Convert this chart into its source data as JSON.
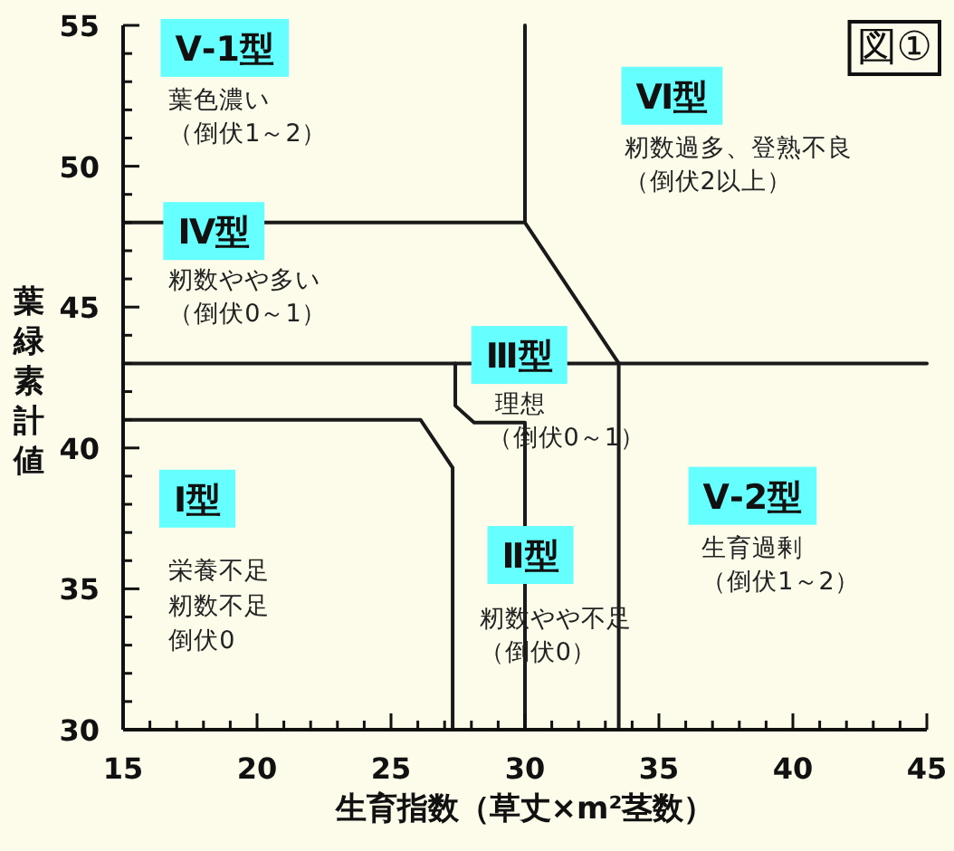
{
  "chart_data": {
    "type": "line",
    "xlabel": "生育指数（草丈×m²茎数）",
    "ylabel": "葉緑素計値",
    "xlim": [
      15,
      45
    ],
    "ylim": [
      30,
      55
    ],
    "xticks": [
      15,
      {
        "value": 16,
        "label": null
      },
      {
        "value": 17,
        "label": null
      },
      {
        "value": 18,
        "label": null
      },
      {
        "value": 19,
        "label": null
      },
      20,
      {
        "value": 21,
        "label": null
      },
      {
        "value": 22,
        "label": null
      },
      {
        "value": 23,
        "label": null
      },
      {
        "value": 24,
        "label": null
      },
      25,
      {
        "value": 26,
        "label": null
      },
      {
        "value": 27,
        "label": null
      },
      {
        "value": 28,
        "label": null
      },
      {
        "value": 29,
        "label": null
      },
      30,
      {
        "value": 31,
        "label": null
      },
      {
        "value": 32,
        "label": null
      },
      {
        "value": 33,
        "label": null
      },
      {
        "value": 34,
        "label": null
      },
      35,
      {
        "value": 36,
        "label": null
      },
      {
        "value": 37,
        "label": null
      },
      {
        "value": 38,
        "label": null
      },
      {
        "value": 39,
        "label": null
      },
      40,
      {
        "value": 41,
        "label": null
      },
      {
        "value": 42,
        "label": null
      },
      {
        "value": 43,
        "label": null
      },
      {
        "value": 44,
        "label": null
      },
      45
    ],
    "yticks": [
      30,
      {
        "value": 31,
        "label": null
      },
      {
        "value": 32,
        "label": null
      },
      {
        "value": 33,
        "label": null
      },
      {
        "value": 34,
        "label": null
      },
      35,
      {
        "value": 36,
        "label": null
      },
      {
        "value": 37,
        "label": null
      },
      {
        "value": 38,
        "label": null
      },
      {
        "value": 39,
        "label": null
      },
      40,
      {
        "value": 41,
        "label": null
      },
      {
        "value": 42,
        "label": null
      },
      {
        "value": 43,
        "label": null
      },
      {
        "value": 44,
        "label": null
      },
      45,
      {
        "value": 46,
        "label": null
      },
      {
        "value": 47,
        "label": null
      },
      {
        "value": 48,
        "label": null
      },
      {
        "value": 49,
        "label": null
      },
      50,
      {
        "value": 51,
        "label": null
      },
      {
        "value": 52,
        "label": null
      },
      {
        "value": 53,
        "label": null
      },
      {
        "value": 54,
        "label": null
      },
      55
    ],
    "series": [
      {
        "color": "#1a1a1a",
        "x": [
          30,
          30
        ],
        "values": [
          55,
          48
        ]
      },
      {
        "color": "#1a1a1a",
        "x": [
          15,
          30,
          33.5,
          45
        ],
        "values": [
          48,
          48,
          43,
          43
        ]
      },
      {
        "color": "#1a1a1a",
        "x": [
          15,
          33.5
        ],
        "values": [
          43,
          43
        ]
      },
      {
        "color": "#1a1a1a",
        "x": [
          33.5,
          33.5
        ],
        "values": [
          43,
          30
        ]
      },
      {
        "color": "#1a1a1a",
        "x": [
          15,
          26.1,
          27.3,
          27.3
        ],
        "values": [
          41,
          41,
          39.3,
          30
        ]
      },
      {
        "color": "#1a1a1a",
        "x": [
          27.4,
          27.4,
          28.1,
          30,
          30
        ],
        "values": [
          43,
          41.5,
          40.9,
          40.9,
          30
        ]
      }
    ],
    "annotations": [
      "Ⅴ-1型",
      "葉色濃い",
      "（倒伏1～2）",
      "Ⅵ型",
      "籾数過多、登熟不良",
      "（倒伏2以上）",
      "Ⅳ型",
      "籾数やや多い",
      "（倒伏0～1）",
      "Ⅲ型",
      "理想",
      "（倒伏0～1）",
      "Ⅱ型",
      "籾数やや不足",
      "（倒伏0）",
      "Ⅰ型",
      "栄養不足",
      "籾数不足",
      "倒伏0",
      "Ⅴ-2型",
      "生育過剰",
      "（倒伏1～2）",
      "図①"
    ]
  }
}
